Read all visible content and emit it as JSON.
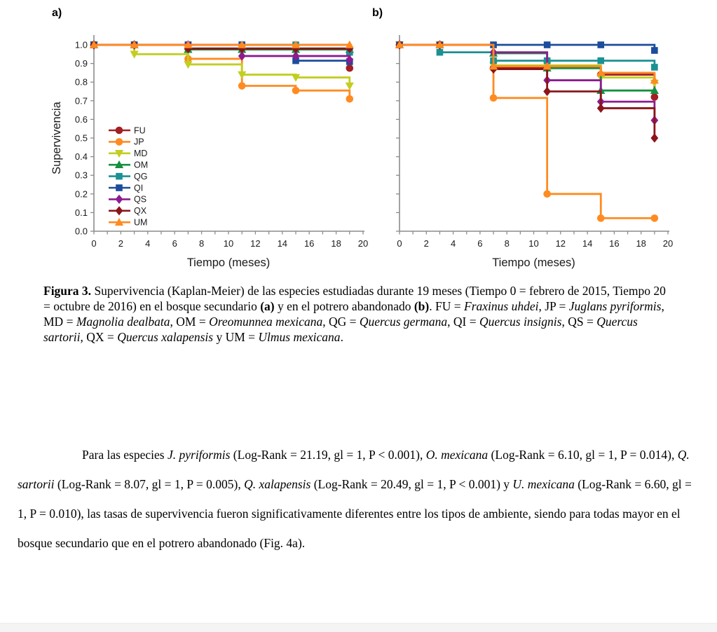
{
  "figure": {
    "panel_a_label": "a)",
    "panel_b_label": "b)"
  },
  "chart_data": [
    {
      "type": "line",
      "panel": "a",
      "xlabel": "Tiempo (meses)",
      "ylabel": "Supervivencia",
      "xlim": [
        0,
        20
      ],
      "ylim": [
        0.0,
        1.0
      ],
      "xticks": [
        0,
        2,
        4,
        6,
        8,
        10,
        12,
        14,
        16,
        18,
        20
      ],
      "yticks": [
        "0.0",
        "0.1",
        "0.2",
        "0.3",
        "0.4",
        "0.5",
        "0.6",
        "0.7",
        "0.8",
        "0.9",
        "1.0"
      ],
      "show_y_tick_labels": true,
      "grid": false,
      "legend": true,
      "legend_position": "left-middle",
      "step": "post",
      "x": [
        0,
        3,
        7,
        11,
        15,
        19
      ],
      "series": [
        {
          "name": "FU",
          "color": "#A21F24",
          "marker": "circle",
          "values": [
            1.0,
            1.0,
            0.98,
            0.98,
            0.98,
            0.875
          ]
        },
        {
          "name": "JP",
          "color": "#FF8B21",
          "marker": "circle",
          "values": [
            1.0,
            1.0,
            0.925,
            0.78,
            0.755,
            0.71
          ]
        },
        {
          "name": "MD",
          "color": "#C2CE21",
          "marker": "triangle-down",
          "values": [
            1.0,
            0.95,
            0.895,
            0.84,
            0.825,
            0.78
          ]
        },
        {
          "name": "OM",
          "color": "#14903E",
          "marker": "triangle-up",
          "values": [
            1.0,
            1.0,
            0.975,
            0.975,
            0.975,
            0.975
          ]
        },
        {
          "name": "QG",
          "color": "#1A9193",
          "marker": "square",
          "values": [
            1.0,
            1.0,
            1.0,
            1.0,
            1.0,
            0.96
          ]
        },
        {
          "name": "QI",
          "color": "#1C4C9C",
          "marker": "square",
          "values": [
            1.0,
            1.0,
            1.0,
            1.0,
            0.915,
            0.91
          ]
        },
        {
          "name": "QS",
          "color": "#8E1B90",
          "marker": "diamond",
          "values": [
            1.0,
            1.0,
            1.0,
            0.94,
            0.94,
            0.92
          ]
        },
        {
          "name": "QX",
          "color": "#8A151A",
          "marker": "diamond",
          "values": [
            1.0,
            1.0,
            0.98,
            0.98,
            0.98,
            0.98
          ]
        },
        {
          "name": "UM",
          "color": "#FF8B21",
          "marker": "triangle-up",
          "values": [
            1.0,
            1.0,
            1.0,
            1.0,
            1.0,
            1.0
          ]
        }
      ]
    },
    {
      "type": "line",
      "panel": "b",
      "xlabel": "Tiempo (meses)",
      "ylabel": "",
      "xlim": [
        0,
        20
      ],
      "ylim": [
        0.0,
        1.0
      ],
      "xticks": [
        0,
        2,
        4,
        6,
        8,
        10,
        12,
        14,
        16,
        18,
        20
      ],
      "yticks": [
        "0.0",
        "0.1",
        "0.2",
        "0.3",
        "0.4",
        "0.5",
        "0.6",
        "0.7",
        "0.8",
        "0.9",
        "1.0"
      ],
      "show_y_tick_labels": false,
      "grid": false,
      "legend": false,
      "step": "post",
      "x": [
        0,
        3,
        7,
        11,
        15,
        19
      ],
      "series": [
        {
          "name": "FU",
          "color": "#A21F24",
          "marker": "circle",
          "values": [
            1.0,
            1.0,
            0.875,
            0.875,
            0.84,
            0.72
          ]
        },
        {
          "name": "JP",
          "color": "#FF8B21",
          "marker": "circle",
          "values": [
            1.0,
            1.0,
            0.715,
            0.2,
            0.07,
            0.07
          ]
        },
        {
          "name": "MD",
          "color": "#C2CE21",
          "marker": "triangle-down",
          "values": [
            1.0,
            1.0,
            0.89,
            0.89,
            0.825,
            0.795
          ]
        },
        {
          "name": "OM",
          "color": "#14903E",
          "marker": "triangle-up",
          "values": [
            1.0,
            1.0,
            0.955,
            0.875,
            0.755,
            0.755
          ]
        },
        {
          "name": "QG",
          "color": "#1A9193",
          "marker": "square",
          "values": [
            1.0,
            0.96,
            0.915,
            0.915,
            0.915,
            0.88
          ]
        },
        {
          "name": "QI",
          "color": "#1C4C9C",
          "marker": "square",
          "values": [
            1.0,
            1.0,
            1.0,
            1.0,
            1.0,
            0.97
          ]
        },
        {
          "name": "QS",
          "color": "#8E1B90",
          "marker": "diamond",
          "values": [
            1.0,
            1.0,
            0.96,
            0.81,
            0.695,
            0.595
          ]
        },
        {
          "name": "QX",
          "color": "#8A151A",
          "marker": "diamond",
          "values": [
            1.0,
            1.0,
            0.87,
            0.75,
            0.66,
            0.5
          ]
        },
        {
          "name": "UM",
          "color": "#FF8B21",
          "marker": "triangle-up",
          "values": [
            1.0,
            1.0,
            0.885,
            0.885,
            0.85,
            0.81
          ]
        }
      ]
    }
  ],
  "caption": {
    "segments": [
      {
        "t": "Figura 3. ",
        "b": 1
      },
      {
        "t": "Supervivencia (Kaplan-Meier) de las especies estudiadas durante 19 meses (Tiempo 0 = febrero de 2015, Tiempo 20 = octubre de 2016) en el bosque secundario "
      },
      {
        "t": "(a)",
        "b": 1
      },
      {
        "t": " y en el potrero abandonado "
      },
      {
        "t": "(b)",
        "b": 1
      },
      {
        "t": ". FU = "
      },
      {
        "t": "Fraxinus uhdei",
        "i": 1
      },
      {
        "t": ", JP = "
      },
      {
        "t": "Juglans pyriformis",
        "i": 1
      },
      {
        "t": ", MD = "
      },
      {
        "t": "Magnolia dealbata",
        "i": 1
      },
      {
        "t": ", OM = "
      },
      {
        "t": "Oreomunnea mexicana",
        "i": 1
      },
      {
        "t": ", QG = "
      },
      {
        "t": "Quercus germana",
        "i": 1
      },
      {
        "t": ", QI = "
      },
      {
        "t": "Quercus insignis",
        "i": 1
      },
      {
        "t": ", QS = "
      },
      {
        "t": "Quercus sartorii",
        "i": 1
      },
      {
        "t": ", QX = "
      },
      {
        "t": "Quercus xalapensis",
        "i": 1
      },
      {
        "t": " y UM = "
      },
      {
        "t": "Ulmus mexicana",
        "i": 1
      },
      {
        "t": "."
      }
    ]
  },
  "body": {
    "segments": [
      {
        "t": "Para las especies "
      },
      {
        "t": "J. pyriformis",
        "i": 1
      },
      {
        "t": " (Log-Rank = 21.19, gl = 1, P < 0.001), "
      },
      {
        "t": "O. mexicana",
        "i": 1
      },
      {
        "t": " (Log-Rank = 6.10, gl = 1, P = 0.014), "
      },
      {
        "t": "Q. sartorii",
        "i": 1
      },
      {
        "t": " (Log-Rank = 8.07, gl = 1, P = 0.005), "
      },
      {
        "t": "Q. xalapensis",
        "i": 1
      },
      {
        "t": " (Log-Rank = 20.49, gl = 1, P < 0.001) y "
      },
      {
        "t": "U. mexicana",
        "i": 1
      },
      {
        "t": " (Log-Rank = 6.60, gl = 1, P = 0.010), las tasas de supervivencia fueron significativamente diferentes entre los tipos de ambiente, siendo para todas mayor en el bosque secundario que en el potrero abandonado (Fig. 4a)."
      }
    ]
  }
}
